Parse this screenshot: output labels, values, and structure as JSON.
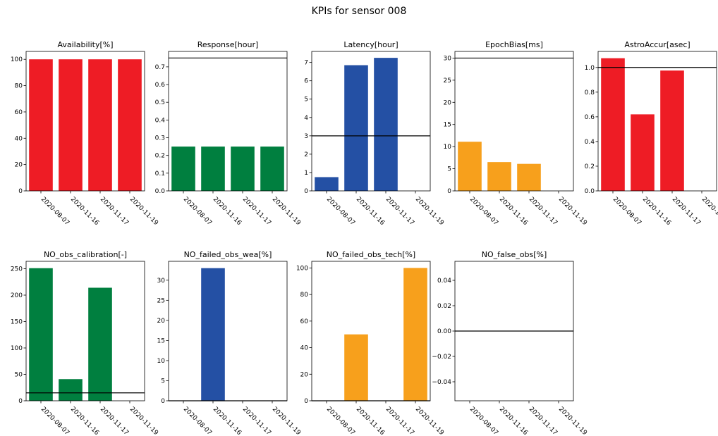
{
  "suptitle": "KPIs for sensor 008",
  "colors": {
    "red": "#ee1c25",
    "green": "#007f3f",
    "blue": "#2450a4",
    "orange": "#f7a01c",
    "threshold": "#000000"
  },
  "chart_data": [
    {
      "type": "bar",
      "title": "Availability[%]",
      "categories": [
        "2020-08-07",
        "2020-11-16",
        "2020-11-17",
        "2020-11-19"
      ],
      "values": [
        100,
        100,
        100,
        100
      ],
      "color": "red",
      "ylim": [
        0,
        106
      ],
      "yticks": [
        0,
        20,
        40,
        60,
        80,
        100
      ],
      "yticklabels": [
        "0",
        "20",
        "40",
        "60",
        "80",
        "100"
      ],
      "threshold": null
    },
    {
      "type": "bar",
      "title": "Response[hour]",
      "categories": [
        "2020-08-07",
        "2020-11-16",
        "2020-11-17",
        "2020-11-19"
      ],
      "values": [
        0.25,
        0.25,
        0.25,
        0.25
      ],
      "color": "green",
      "ylim": [
        0,
        0.787
      ],
      "yticks": [
        0,
        0.1,
        0.2,
        0.3,
        0.4,
        0.5,
        0.6,
        0.7
      ],
      "yticklabels": [
        "0.0",
        "0.1",
        "0.2",
        "0.3",
        "0.4",
        "0.5",
        "0.6",
        "0.7"
      ],
      "threshold": 0.75
    },
    {
      "type": "bar",
      "title": "Latency[hour]",
      "categories": [
        "2020-08-07",
        "2020-11-16",
        "2020-11-17",
        "2020-11-19"
      ],
      "values": [
        0.75,
        6.85,
        7.25,
        0
      ],
      "color": "blue",
      "ylim": [
        0,
        7.6
      ],
      "yticks": [
        0,
        1,
        2,
        3,
        4,
        5,
        6,
        7
      ],
      "yticklabels": [
        "0",
        "1",
        "2",
        "3",
        "4",
        "5",
        "6",
        "7"
      ],
      "threshold": 3.0
    },
    {
      "type": "bar",
      "title": "EpochBias[ms]",
      "categories": [
        "2020-08-07",
        "2020-11-16",
        "2020-11-17",
        "2020-11-19"
      ],
      "values": [
        11.1,
        6.5,
        6.1,
        0
      ],
      "color": "orange",
      "ylim": [
        0,
        31.5
      ],
      "yticks": [
        0,
        5,
        10,
        15,
        20,
        25,
        30
      ],
      "yticklabels": [
        "0",
        "5",
        "10",
        "15",
        "20",
        "25",
        "30"
      ],
      "threshold": 30
    },
    {
      "type": "bar",
      "title": "AstroAccur[asec]",
      "categories": [
        "2020-08-07",
        "2020-11-16",
        "2020-11-17",
        "2020-11-19"
      ],
      "values": [
        1.075,
        0.62,
        0.975,
        0
      ],
      "color": "red",
      "ylim": [
        0,
        1.13
      ],
      "yticks": [
        0,
        0.2,
        0.4,
        0.6,
        0.8,
        1.0
      ],
      "yticklabels": [
        "0.0",
        "0.2",
        "0.4",
        "0.6",
        "0.8",
        "1.0"
      ],
      "threshold": 1.0
    },
    {
      "type": "bar",
      "title": "NO_obs_calibration[-]",
      "categories": [
        "2020-08-07",
        "2020-11-16",
        "2020-11-17",
        "2020-11-19"
      ],
      "values": [
        251,
        41,
        214,
        0
      ],
      "color": "green",
      "ylim": [
        0,
        264
      ],
      "yticks": [
        0,
        50,
        100,
        150,
        200,
        250
      ],
      "yticklabels": [
        "0",
        "50",
        "100",
        "150",
        "200",
        "250"
      ],
      "threshold": 15
    },
    {
      "type": "bar",
      "title": "NO_failed_obs_wea[%]",
      "categories": [
        "2020-08-07",
        "2020-11-16",
        "2020-11-17",
        "2020-11-19"
      ],
      "values": [
        0,
        33,
        0,
        0
      ],
      "color": "blue",
      "ylim": [
        0,
        34.7
      ],
      "yticks": [
        0,
        5,
        10,
        15,
        20,
        25,
        30
      ],
      "yticklabels": [
        "0",
        "5",
        "10",
        "15",
        "20",
        "25",
        "30"
      ],
      "threshold": 0
    },
    {
      "type": "bar",
      "title": "NO_failed_obs_tech[%]",
      "categories": [
        "2020-08-07",
        "2020-11-16",
        "2020-11-17",
        "2020-11-19"
      ],
      "values": [
        0,
        50,
        0,
        100
      ],
      "color": "orange",
      "ylim": [
        0,
        105
      ],
      "yticks": [
        0,
        20,
        40,
        60,
        80,
        100
      ],
      "yticklabels": [
        "0",
        "20",
        "40",
        "60",
        "80",
        "100"
      ],
      "threshold": 0
    },
    {
      "type": "bar",
      "title": "NO_false_obs[%]",
      "categories": [
        "2020-08-07",
        "2020-11-16",
        "2020-11-17",
        "2020-11-19"
      ],
      "values": [
        0,
        0,
        0,
        0
      ],
      "color": "orange",
      "ylim": [
        -0.055,
        0.055
      ],
      "yticks": [
        -0.04,
        -0.02,
        0,
        0.02,
        0.04
      ],
      "yticklabels": [
        "−0.04",
        "−0.02",
        "0.00",
        "0.02",
        "0.04"
      ],
      "threshold": 0
    }
  ]
}
